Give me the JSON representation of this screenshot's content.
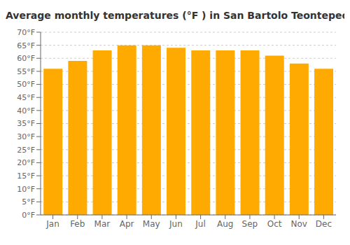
{
  "chart_data": {
    "type": "bar",
    "title": "Average monthly temperatures (°F ) in San Bartolo Teontepec",
    "categories": [
      "Jan",
      "Feb",
      "Mar",
      "Apr",
      "May",
      "Jun",
      "Jul",
      "Aug",
      "Sep",
      "Oct",
      "Nov",
      "Dec"
    ],
    "values": [
      56,
      59,
      63,
      65,
      65,
      64,
      63,
      63,
      63,
      61,
      58,
      56
    ],
    "color": "#FFAA00",
    "ylim": [
      0,
      70
    ],
    "yticks": [
      {
        "value": 0,
        "label": "0°F"
      },
      {
        "value": 5,
        "label": "5°F"
      },
      {
        "value": 10,
        "label": "10°F"
      },
      {
        "value": 15,
        "label": "15°F"
      },
      {
        "value": 20,
        "label": "20°F"
      },
      {
        "value": 25,
        "label": "25°F"
      },
      {
        "value": 30,
        "label": "30°F"
      },
      {
        "value": 35,
        "label": "35°F"
      },
      {
        "value": 40,
        "label": "40°F"
      },
      {
        "value": 45,
        "label": "45°F"
      },
      {
        "value": 50,
        "label": "50°F"
      },
      {
        "value": 55,
        "label": "55°F"
      },
      {
        "value": 60,
        "label": "60°F"
      },
      {
        "value": 65,
        "label": "65°F"
      },
      {
        "value": 70,
        "label": "70°F"
      }
    ],
    "grid": true
  }
}
